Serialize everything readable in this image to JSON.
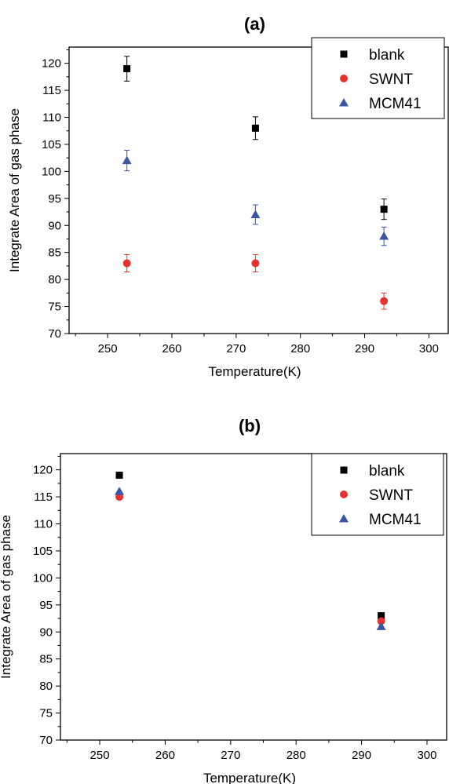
{
  "colors": {
    "blank": "#000000",
    "SWNT": "#e8322e",
    "MCM41": "#3a55a4"
  },
  "chart_data": [
    {
      "type": "scatter",
      "title": "(a)",
      "xlabel": "Temperature(K)",
      "ylabel": "Integrate Area of gas phase",
      "xlim": [
        244,
        303
      ],
      "ylim": [
        70,
        123
      ],
      "xticks": [
        250,
        260,
        270,
        280,
        290,
        300
      ],
      "yticks": [
        70,
        75,
        80,
        85,
        90,
        95,
        100,
        105,
        110,
        115,
        120
      ],
      "grid": false,
      "legend_position": "top-right",
      "error_bars": true,
      "series": [
        {
          "name": "blank",
          "marker": "square",
          "x": [
            253,
            273,
            293
          ],
          "y": [
            119,
            108,
            93
          ],
          "error": [
            2.3,
            2.1,
            1.9
          ]
        },
        {
          "name": "SWNT",
          "marker": "circle",
          "x": [
            253,
            273,
            293
          ],
          "y": [
            83,
            83,
            76
          ],
          "error": [
            1.6,
            1.6,
            1.5
          ]
        },
        {
          "name": "MCM41",
          "marker": "triangle",
          "x": [
            253,
            273,
            293
          ],
          "y": [
            102,
            92,
            88
          ],
          "error": [
            1.9,
            1.8,
            1.7
          ]
        }
      ]
    },
    {
      "type": "scatter",
      "title": "(b)",
      "xlabel": "Temperature(K)",
      "ylabel": "Integrate Area of gas phase",
      "xlim": [
        244,
        303
      ],
      "ylim": [
        70,
        123
      ],
      "xticks": [
        250,
        260,
        270,
        280,
        290,
        300
      ],
      "yticks": [
        70,
        75,
        80,
        85,
        90,
        95,
        100,
        105,
        110,
        115,
        120
      ],
      "grid": false,
      "legend_position": "top-right",
      "error_bars": false,
      "series": [
        {
          "name": "blank",
          "marker": "square",
          "x": [
            253,
            293
          ],
          "y": [
            119,
            93
          ]
        },
        {
          "name": "SWNT",
          "marker": "circle",
          "x": [
            253,
            293
          ],
          "y": [
            115,
            92
          ]
        },
        {
          "name": "MCM41",
          "marker": "triangle",
          "x": [
            253,
            293
          ],
          "y": [
            116,
            91
          ]
        }
      ]
    }
  ]
}
